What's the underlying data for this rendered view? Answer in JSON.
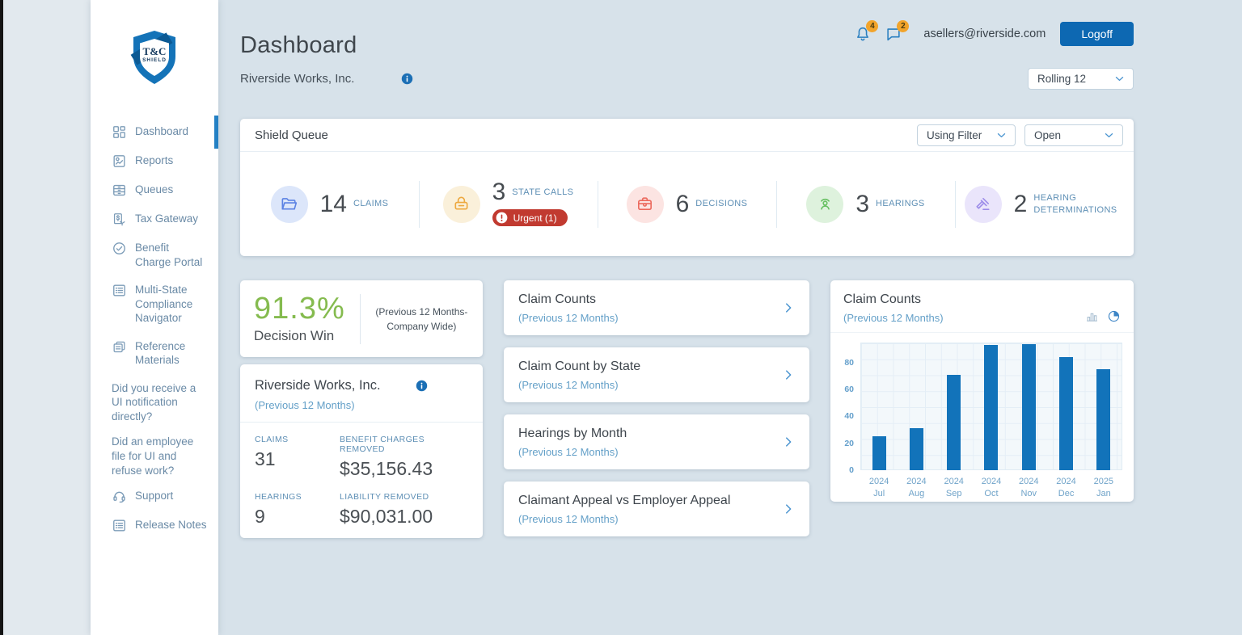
{
  "brand": {
    "logo_line1": "T&C",
    "logo_line2": "SHIELD"
  },
  "header": {
    "title": "Dashboard",
    "subtitle": "Riverside Works, Inc.",
    "email": "asellers@riverside.com",
    "logoff_label": "Logoff",
    "notifications": [
      {
        "icon": "bell-icon",
        "count": "4"
      },
      {
        "icon": "chat-icon",
        "count": "2"
      }
    ],
    "period_select": {
      "value": "Rolling 12"
    }
  },
  "sidebar": {
    "items": [
      {
        "label": "Dashboard",
        "icon": "dashboard-icon",
        "active": true
      },
      {
        "label": "Reports",
        "icon": "reports-icon"
      },
      {
        "label": "Queues",
        "icon": "queues-icon"
      },
      {
        "label": "Tax Gateway",
        "icon": "tax-gateway-icon"
      },
      {
        "label": "Benefit\nCharge Portal",
        "icon": "benefit-charge-portal-icon"
      },
      {
        "label": "Multi-State\nCompliance\nNavigator",
        "icon": "multi-state-compliance-icon"
      },
      {
        "label": "Reference\nMaterials",
        "icon": "reference-materials-icon"
      },
      {
        "label": "Did you receive a\nUI notification\ndirectly?",
        "icon": "",
        "question": true
      },
      {
        "label": "Did an employee\nfile for UI and\nrefuse work?",
        "icon": "",
        "question": true
      },
      {
        "label": "Support",
        "icon": "support-icon"
      },
      {
        "label": "Release Notes",
        "icon": "release-notes-icon"
      }
    ]
  },
  "shield_queue": {
    "title": "Shield Queue",
    "filter_using": "Using Filter",
    "filter_status": "Open",
    "stats": [
      {
        "value": "14",
        "label": "CLAIMS",
        "icon": "folder-icon",
        "color": "#5b82e3",
        "bg": "#dce6fa"
      },
      {
        "value": "3",
        "label": "STATE CALLS",
        "icon": "phone-icon",
        "color": "#eda83f",
        "bg": "#faf0da",
        "badge": "Urgent (1)"
      },
      {
        "value": "6",
        "label": "DECISIONS",
        "icon": "briefcase-icon",
        "color": "#ec6a5e",
        "bg": "#fce4e2"
      },
      {
        "value": "3",
        "label": "HEARINGS",
        "icon": "hearing-icon",
        "color": "#67c062",
        "bg": "#def2dd"
      },
      {
        "value": "2",
        "label": "HEARING DETERMINATIONS",
        "icon": "gavel-icon",
        "color": "#9c8ce9",
        "bg": "#eae5fb"
      }
    ]
  },
  "decision_win": {
    "percent": "91.3%",
    "label": "Decision Win",
    "note": "(Previous 12 Months-\nCompany Wide)"
  },
  "company_card": {
    "title": "Riverside Works, Inc.",
    "subtitle": "(Previous 12 Months)",
    "stats": [
      {
        "label": "CLAIMS",
        "value": "31"
      },
      {
        "label": "BENEFIT CHARGES REMOVED",
        "value": "$35,156.43"
      },
      {
        "label": "HEARINGS",
        "value": "9"
      },
      {
        "label": "LIABILITY REMOVED",
        "value": "$90,031.00"
      }
    ]
  },
  "link_cards": [
    {
      "title": "Claim Counts",
      "subtitle": "(Previous 12 Months)"
    },
    {
      "title": "Claim Count by State",
      "subtitle": "(Previous 12 Months)"
    },
    {
      "title": "Hearings by Month",
      "subtitle": "(Previous 12 Months)"
    },
    {
      "title": "Claimant Appeal vs Employer Appeal",
      "subtitle": "(Previous 12 Months)"
    }
  ],
  "chart_card": {
    "title": "Claim Counts",
    "subtitle": "(Previous 12 Months)"
  },
  "chart_data": {
    "type": "bar",
    "title": "Claim Counts (Previous 12 Months)",
    "categories": [
      {
        "year": "2024",
        "month": "Jul"
      },
      {
        "year": "2024",
        "month": "Aug"
      },
      {
        "year": "2024",
        "month": "Sep"
      },
      {
        "year": "2024",
        "month": "Oct"
      },
      {
        "year": "2024",
        "month": "Nov"
      },
      {
        "year": "2024",
        "month": "Dec"
      },
      {
        "year": "2025",
        "month": "Jan"
      }
    ],
    "values": [
      25,
      31,
      71,
      93,
      94,
      84,
      75
    ],
    "xlabel": "",
    "ylabel": "",
    "ylim": [
      0,
      95
    ],
    "yticks": [
      0,
      20,
      40,
      60,
      80
    ],
    "grid": true,
    "legend": false,
    "bar_color": "#1273ba"
  }
}
